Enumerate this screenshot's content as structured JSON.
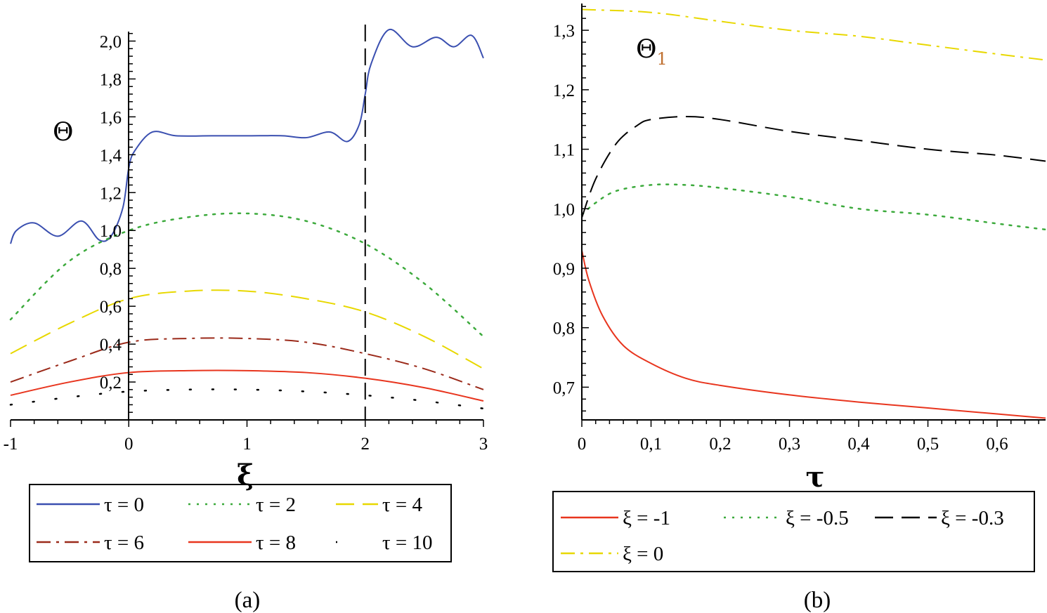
{
  "chart_data": [
    {
      "type": "line",
      "panel_label": "(a)",
      "xlabel": "ξ",
      "ylabel": "Θ",
      "xlim": [
        -1,
        3
      ],
      "ylim": [
        0,
        2.05
      ],
      "x_tick_labels": [
        "-1",
        "0",
        "1",
        "2",
        "3"
      ],
      "x_ticks": [
        -1,
        0,
        1,
        2,
        3
      ],
      "y_tick_labels": [
        "0,2",
        "0,4",
        "0,6",
        "0,8",
        "1,0",
        "1,2",
        "1,4",
        "1,6",
        "1,8",
        "2,0"
      ],
      "y_ticks": [
        0.2,
        0.4,
        0.6,
        0.8,
        1.0,
        1.2,
        1.4,
        1.6,
        1.8,
        2.0
      ],
      "vline": 2,
      "series": [
        {
          "name": "τ = 0",
          "color": "#3a4fb0",
          "dash": "solid",
          "x": [
            -1,
            -0.95,
            -0.8,
            -0.6,
            -0.4,
            -0.25,
            -0.15,
            -0.05,
            0,
            0.05,
            0.2,
            0.4,
            0.7,
            1.0,
            1.3,
            1.5,
            1.7,
            1.85,
            1.95,
            2.0,
            2.05,
            2.2,
            2.4,
            2.6,
            2.75,
            2.9,
            3.0
          ],
          "y": [
            0.93,
            1.0,
            1.04,
            0.97,
            1.05,
            0.95,
            0.97,
            1.12,
            1.33,
            1.42,
            1.52,
            1.5,
            1.5,
            1.5,
            1.5,
            1.49,
            1.52,
            1.47,
            1.56,
            1.72,
            1.88,
            2.06,
            1.97,
            2.02,
            1.97,
            2.03,
            1.91
          ]
        },
        {
          "name": "τ = 2",
          "color": "#3caa3c",
          "dash": "dot",
          "x": [
            -1,
            -0.5,
            0,
            0.5,
            1.0,
            1.5,
            2.0,
            2.5,
            3.0
          ],
          "y": [
            0.53,
            0.84,
            1.0,
            1.07,
            1.09,
            1.05,
            0.93,
            0.72,
            0.44
          ]
        },
        {
          "name": "τ = 4",
          "color": "#e8d800",
          "dash": "long",
          "x": [
            -1,
            -0.5,
            0,
            0.5,
            1.0,
            1.5,
            2.0,
            2.5,
            3.0
          ],
          "y": [
            0.35,
            0.51,
            0.64,
            0.68,
            0.68,
            0.64,
            0.57,
            0.44,
            0.27
          ]
        },
        {
          "name": "τ = 6",
          "color": "#9b2a1a",
          "dash": "dashdot",
          "x": [
            -1,
            -0.5,
            0,
            0.5,
            1.0,
            1.5,
            2.0,
            2.5,
            3.0
          ],
          "y": [
            0.2,
            0.31,
            0.41,
            0.43,
            0.43,
            0.41,
            0.35,
            0.27,
            0.16
          ]
        },
        {
          "name": "τ = 8",
          "color": "#e8351e",
          "dash": "solid",
          "x": [
            -1,
            -0.5,
            0,
            0.5,
            1.0,
            1.5,
            2.0,
            2.5,
            3.0
          ],
          "y": [
            0.13,
            0.2,
            0.25,
            0.26,
            0.26,
            0.25,
            0.22,
            0.17,
            0.1
          ]
        },
        {
          "name": "τ = 10",
          "color": "#000000",
          "dash": "sparse",
          "x": [
            -1,
            -0.5,
            0,
            0.5,
            1.0,
            1.5,
            2.0,
            2.5,
            3.0
          ],
          "y": [
            0.08,
            0.12,
            0.15,
            0.16,
            0.16,
            0.15,
            0.13,
            0.1,
            0.06
          ]
        }
      ]
    },
    {
      "type": "line",
      "panel_label": "(b)",
      "xlabel": "τ",
      "ylabel": "Θ",
      "ylabel_sub": "1",
      "xlim": [
        0,
        0.67
      ],
      "ylim": [
        0.645,
        1.345
      ],
      "x_tick_labels": [
        "0",
        "0,1",
        "0,2",
        "0,3",
        "0,4",
        "0,5",
        "0,6"
      ],
      "x_ticks": [
        0,
        0.1,
        0.2,
        0.3,
        0.4,
        0.5,
        0.6
      ],
      "y_tick_labels": [
        "0,7",
        "0,8",
        "0,9",
        "1,0",
        "1,1",
        "1,2",
        "1,3"
      ],
      "y_ticks": [
        0.7,
        0.8,
        0.9,
        1.0,
        1.1,
        1.2,
        1.3
      ],
      "series": [
        {
          "name": "ξ = -1",
          "color": "#e8351e",
          "dash": "solid",
          "x": [
            0,
            0.01,
            0.03,
            0.06,
            0.1,
            0.15,
            0.2,
            0.3,
            0.4,
            0.5,
            0.6,
            0.67
          ],
          "y": [
            0.93,
            0.88,
            0.82,
            0.77,
            0.74,
            0.715,
            0.703,
            0.687,
            0.675,
            0.665,
            0.655,
            0.648
          ]
        },
        {
          "name": "ξ = -0.5",
          "color": "#3caa3c",
          "dash": "dot",
          "x": [
            0,
            0.02,
            0.05,
            0.1,
            0.15,
            0.2,
            0.3,
            0.4,
            0.5,
            0.6,
            0.67
          ],
          "y": [
            0.99,
            1.01,
            1.03,
            1.04,
            1.04,
            1.035,
            1.02,
            1.0,
            0.99,
            0.975,
            0.965
          ]
        },
        {
          "name": "ξ = -0.3",
          "color": "#000000",
          "dash": "long",
          "x": [
            0,
            0.02,
            0.05,
            0.08,
            0.1,
            0.15,
            0.2,
            0.3,
            0.4,
            0.5,
            0.6,
            0.67
          ],
          "y": [
            0.985,
            1.05,
            1.11,
            1.14,
            1.15,
            1.155,
            1.15,
            1.13,
            1.115,
            1.1,
            1.09,
            1.08
          ]
        },
        {
          "name": "ξ = 0",
          "color": "#e8d800",
          "dash": "dashdot",
          "x": [
            0,
            0.1,
            0.2,
            0.3,
            0.4,
            0.5,
            0.6,
            0.67
          ],
          "y": [
            1.335,
            1.33,
            1.315,
            1.3,
            1.29,
            1.275,
            1.26,
            1.25
          ]
        }
      ]
    }
  ]
}
